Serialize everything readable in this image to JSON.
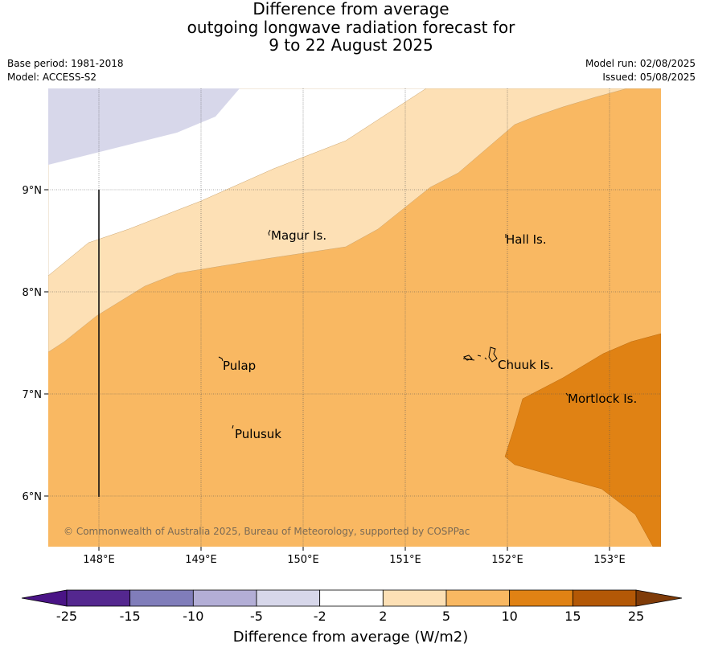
{
  "title": {
    "line1": "Difference from average",
    "line2": "outgoing longwave radiation forecast for",
    "line3": "9 to 22 August 2025"
  },
  "meta": {
    "base_period": "Base period: 1981-2018",
    "model": "Model: ACCESS-S2",
    "model_run": "Model run: 02/08/2025",
    "issued": "Issued: 05/08/2025"
  },
  "axes": {
    "x_ticks": [
      "148°E",
      "149°E",
      "150°E",
      "151°E",
      "152°E",
      "153°E"
    ],
    "y_ticks": [
      "9°N",
      "8°N",
      "7°N",
      "6°N"
    ]
  },
  "places": {
    "magur": "Magur Is.",
    "hall": "Hall Is.",
    "pulap": "Pulap",
    "chuuk": "Chuuk Is.",
    "mortlock": "Mortlock Is.",
    "pulusuk": "Pulusuk"
  },
  "copyright": "© Commonwealth of Australia 2025, Bureau of Meteorology, supported by COSPPac",
  "colorbar": {
    "title": "Difference from average (W/m2)",
    "ticks": [
      "-25",
      "-15",
      "-10",
      "-5",
      "-2",
      "2",
      "5",
      "10",
      "15",
      "25"
    ],
    "colors": [
      "#4a1486",
      "#54278f",
      "#807dba",
      "#b3aed6",
      "#d7d7ea",
      "#ffffff",
      "#fde0b5",
      "#f9b862",
      "#e08214",
      "#b35806",
      "#7f3b08"
    ]
  },
  "colors": {
    "neg_light": "#d7d7ea",
    "zero": "#ffffff",
    "pos_light": "#fde0b5",
    "pos_mid": "#f9b862",
    "pos_strong": "#e08214"
  }
}
